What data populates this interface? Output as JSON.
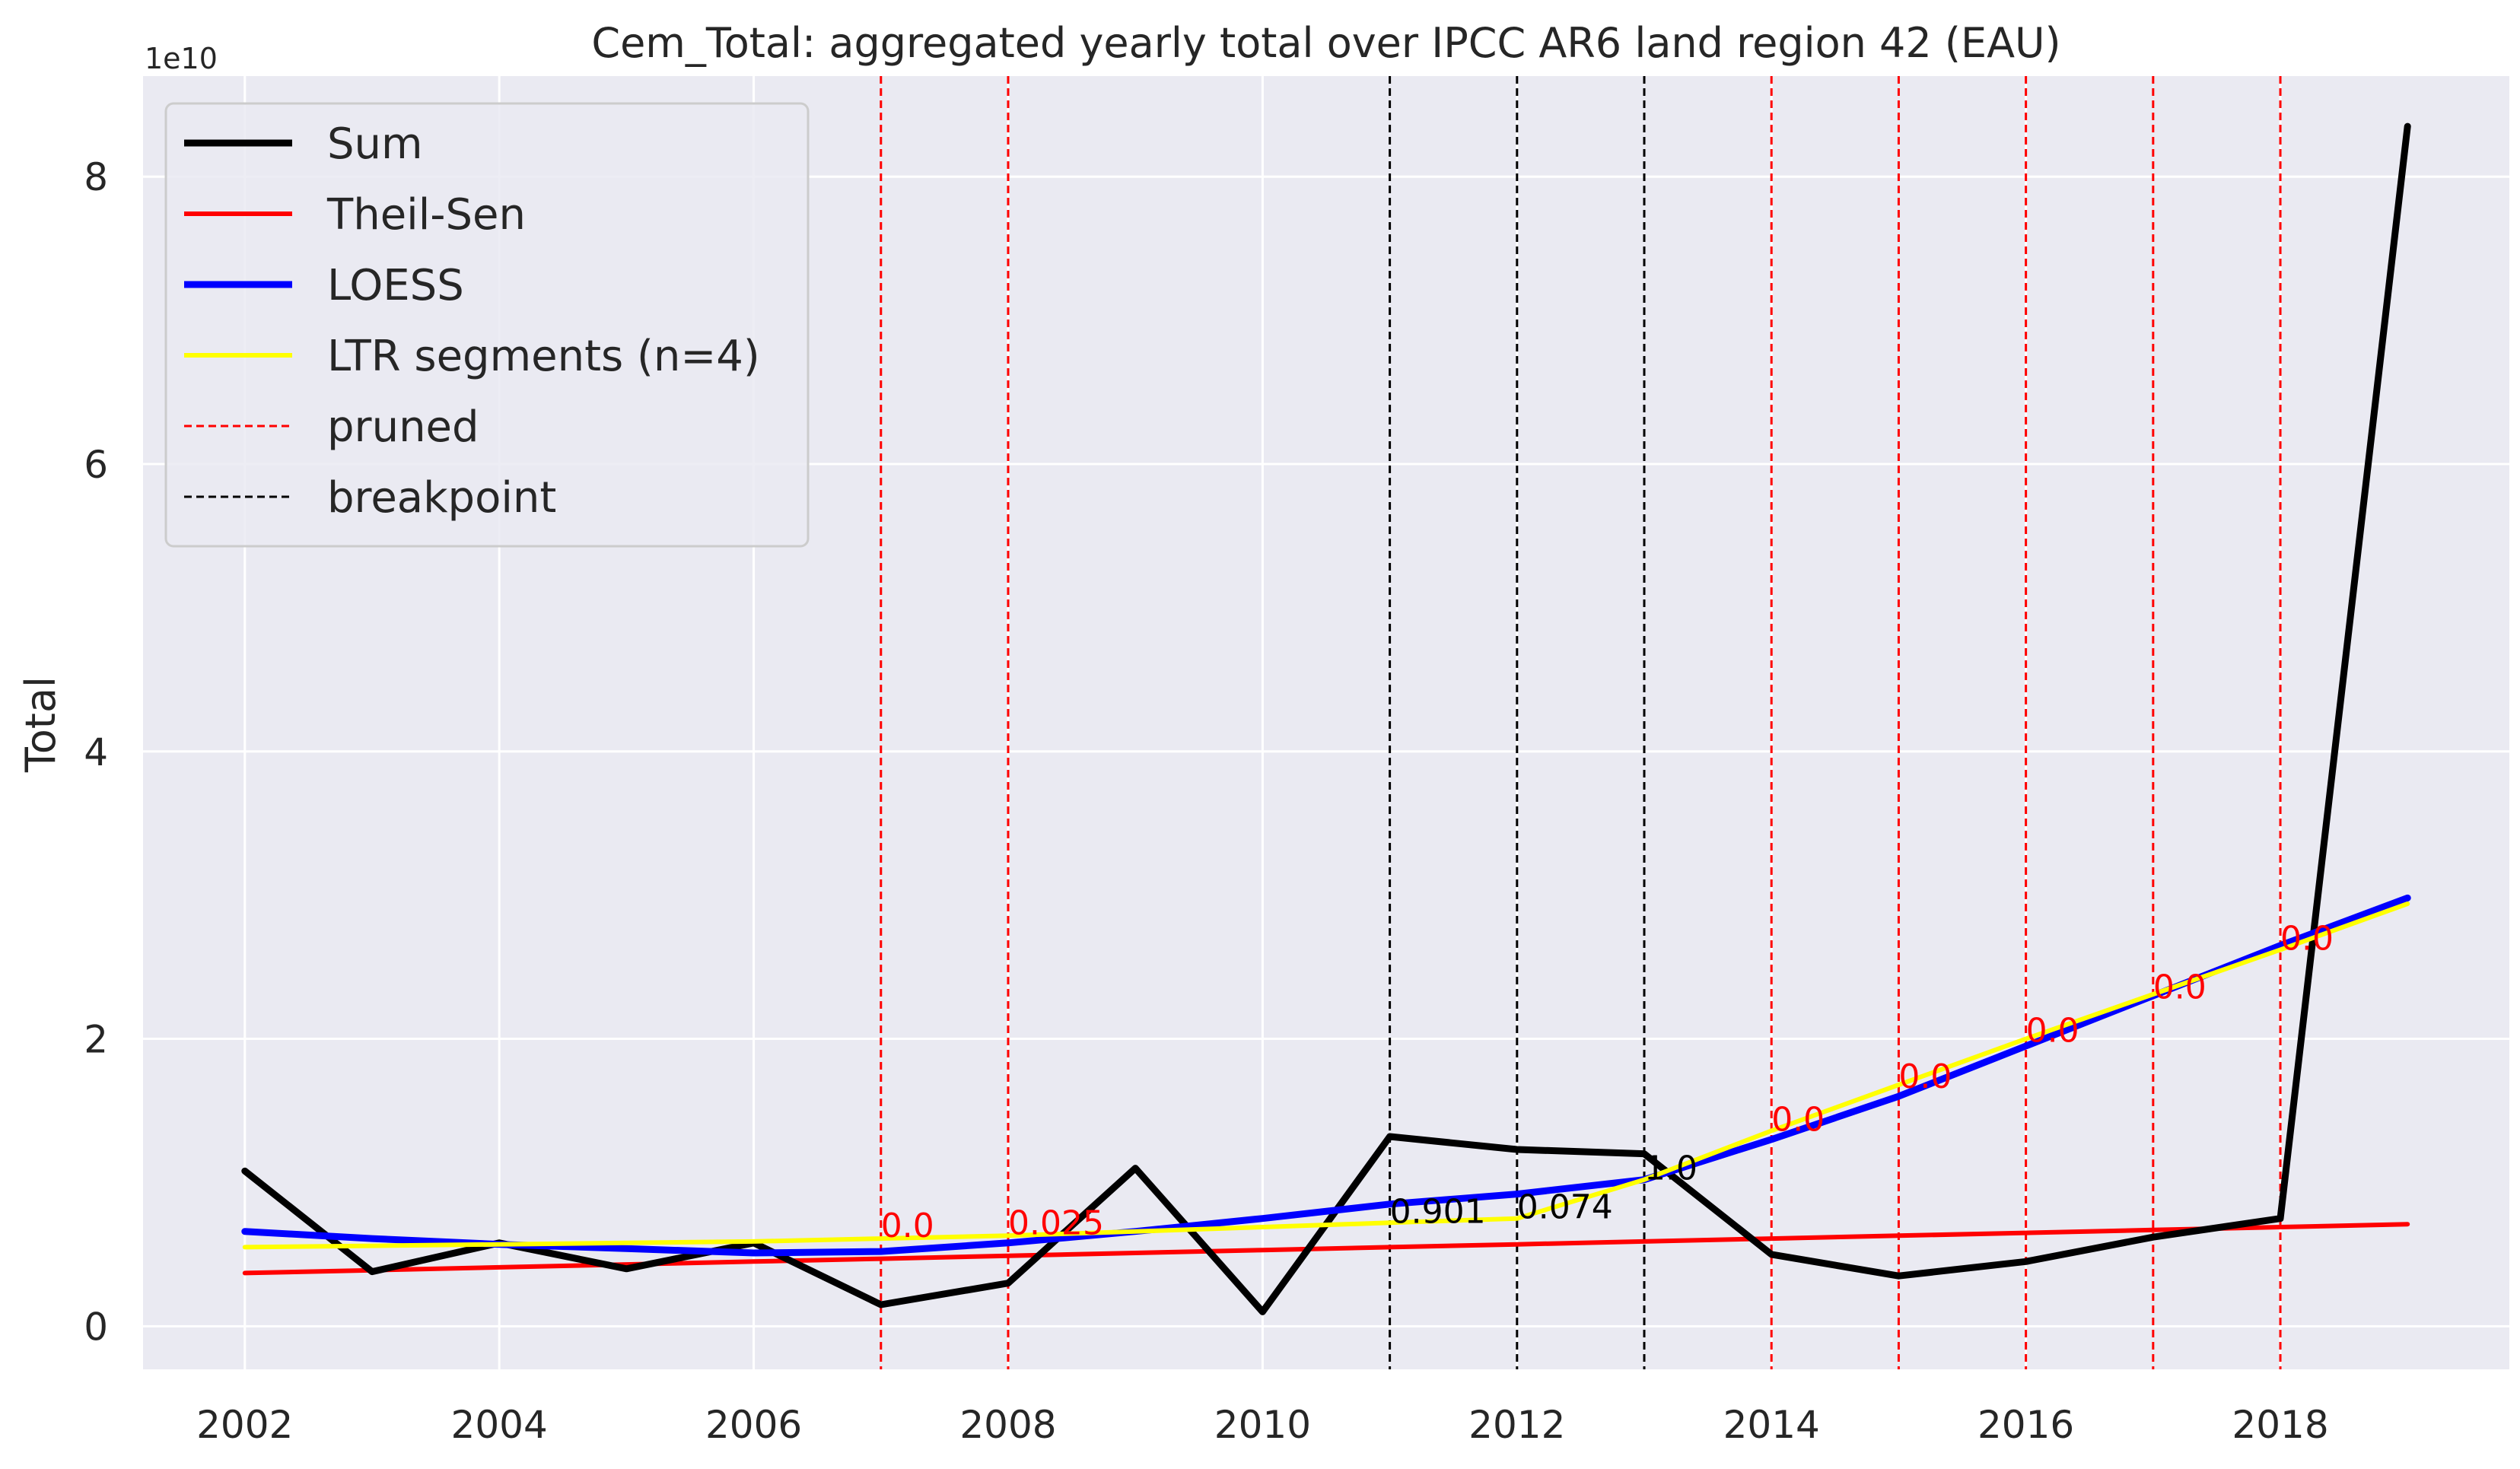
{
  "chart_data": {
    "type": "line",
    "title": "Cem_Total: aggregated yearly total over IPCC AR6 land region 42 (EAU)",
    "xlabel": "",
    "ylabel": "Total",
    "y_offset_label": "1e10",
    "xlim": [
      2001.2,
      2019.8
    ],
    "ylim": [
      -0.3,
      8.7
    ],
    "x_ticks": [
      2002,
      2004,
      2006,
      2008,
      2010,
      2012,
      2014,
      2016,
      2018
    ],
    "y_ticks": [
      0,
      2,
      4,
      6,
      8
    ],
    "grid": true,
    "legend_position": "top-left",
    "x": [
      2002,
      2003,
      2004,
      2005,
      2006,
      2007,
      2008,
      2009,
      2010,
      2011,
      2012,
      2013,
      2014,
      2015,
      2016,
      2017,
      2018,
      2019
    ],
    "series": [
      {
        "name": "Sum",
        "color": "#000000",
        "values": [
          1.08,
          0.38,
          0.58,
          0.4,
          0.58,
          0.15,
          0.3,
          1.1,
          0.1,
          1.32,
          1.23,
          1.2,
          0.5,
          0.35,
          0.45,
          0.62,
          0.75,
          8.35
        ]
      },
      {
        "name": "Theil-Sen",
        "color": "#ff0000",
        "values": [
          0.37,
          0.39,
          0.41,
          0.43,
          0.45,
          0.47,
          0.49,
          0.51,
          0.53,
          0.55,
          0.57,
          0.59,
          0.61,
          0.63,
          0.65,
          0.67,
          0.69,
          0.71
        ]
      },
      {
        "name": "LOESS",
        "color": "#0000ff",
        "values": [
          0.66,
          0.61,
          0.57,
          0.54,
          0.51,
          0.52,
          0.58,
          0.66,
          0.75,
          0.85,
          0.92,
          1.02,
          1.3,
          1.6,
          1.95,
          2.3,
          2.65,
          2.98
        ]
      },
      {
        "name": "LTR segments (n=4)",
        "color": "#ffff00",
        "values": [
          0.55,
          0.56,
          0.57,
          0.58,
          0.59,
          0.61,
          0.63,
          0.66,
          0.69,
          0.72,
          0.75,
          1.02,
          1.36,
          1.68,
          2.0,
          2.31,
          2.62,
          2.94
        ]
      }
    ],
    "pruned": {
      "name": "pruned",
      "color": "#ff0000",
      "x": [
        2007,
        2008,
        2014,
        2015,
        2016,
        2017,
        2018
      ],
      "labels": [
        "0.0",
        "0.025",
        "0.0",
        "0.0",
        "0.0",
        "0.0",
        "0.0"
      ],
      "label_y": [
        0.62,
        0.64,
        1.36,
        1.66,
        1.98,
        2.28,
        2.62
      ]
    },
    "breakpoint": {
      "name": "breakpoint",
      "color": "#000000",
      "x": [
        2011,
        2012,
        2013
      ],
      "labels": [
        "0.901",
        "0.074",
        "1.0"
      ],
      "label_y": [
        0.72,
        0.75,
        1.02
      ]
    }
  }
}
